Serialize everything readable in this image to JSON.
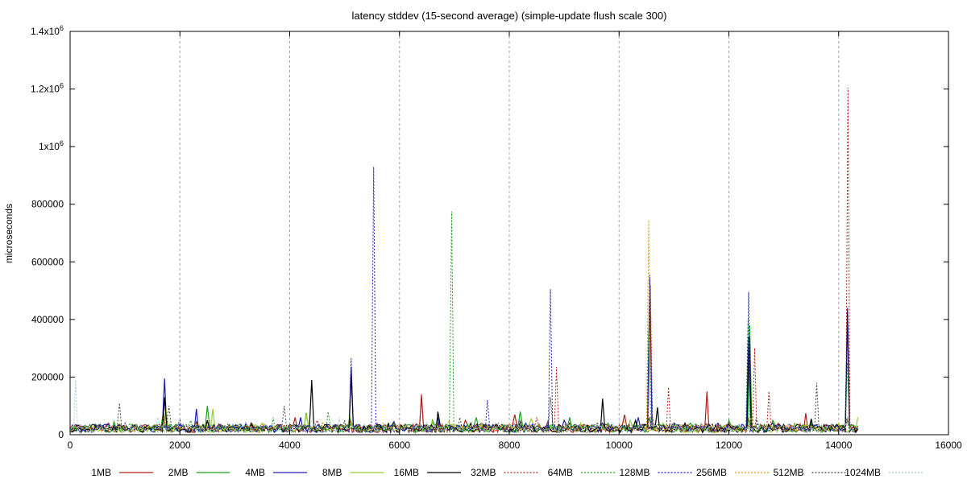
{
  "chart_data": {
    "type": "line",
    "title": "latency stddev (15-second average) (simple-update flush scale 300)",
    "xlabel": "",
    "ylabel": "microseconds",
    "xlim": [
      0,
      16000
    ],
    "ylim": [
      0,
      1400000
    ],
    "x_ticks": [
      {
        "value": 0,
        "label": "0"
      },
      {
        "value": 2000,
        "label": "2000"
      },
      {
        "value": 4000,
        "label": "4000"
      },
      {
        "value": 6000,
        "label": "6000"
      },
      {
        "value": 8000,
        "label": "8000"
      },
      {
        "value": 10000,
        "label": "10000"
      },
      {
        "value": 12000,
        "label": "12000"
      },
      {
        "value": 14000,
        "label": "14000"
      },
      {
        "value": 16000,
        "label": "16000"
      }
    ],
    "y_ticks": [
      {
        "value": 0,
        "label": "0"
      },
      {
        "value": 200000,
        "label": "200000"
      },
      {
        "value": 400000,
        "label": "400000"
      },
      {
        "value": 600000,
        "label": "600000"
      },
      {
        "value": 800000,
        "label": "800000"
      },
      {
        "value": 1000000,
        "label": "1x10",
        "exp": "6"
      },
      {
        "value": 1200000,
        "label": "1.2x10",
        "exp": "6"
      },
      {
        "value": 1400000,
        "label": "1.4x10",
        "exp": "6"
      }
    ],
    "grid": {
      "x": true,
      "y": false
    },
    "legend_placement": "bottom",
    "series": [
      {
        "name": "1MB",
        "color": "#b41e1e",
        "dashed": false,
        "x": [
          0,
          700,
          1700,
          2300,
          3300,
          4100,
          5100,
          5900,
          6400,
          6700,
          7200,
          8100,
          8700,
          9400,
          10100,
          10550,
          11000,
          11600,
          12000,
          12350,
          12900,
          13400,
          14150,
          14350
        ],
        "y": [
          20000,
          40000,
          60000,
          45000,
          35000,
          60000,
          50000,
          40000,
          140000,
          40000,
          50000,
          70000,
          45000,
          30000,
          70000,
          60000,
          40000,
          150000,
          40000,
          60000,
          40000,
          75000,
          50000,
          30000
        ]
      },
      {
        "name": "2MB",
        "color": "#1ea01e",
        "dashed": false,
        "x": [
          0,
          800,
          1700,
          2500,
          3300,
          4300,
          5100,
          5900,
          6600,
          7400,
          8200,
          9100,
          9800,
          10550,
          11300,
          12000,
          12380,
          12800,
          13500,
          14150,
          14350
        ],
        "y": [
          20000,
          45000,
          80000,
          100000,
          40000,
          75000,
          55000,
          45000,
          50000,
          60000,
          80000,
          60000,
          40000,
          60000,
          40000,
          50000,
          380000,
          50000,
          40000,
          55000,
          25000
        ]
      },
      {
        "name": "4MB",
        "color": "#1e1eb4",
        "dashed": false,
        "x": [
          0,
          700,
          1720,
          2300,
          3200,
          4200,
          5120,
          5900,
          6700,
          7500,
          8300,
          9000,
          9700,
          10350,
          10560,
          11000,
          11800,
          12360,
          12800,
          13600,
          14160,
          14350
        ],
        "y": [
          15000,
          35000,
          195000,
          90000,
          40000,
          60000,
          235000,
          45000,
          60000,
          40000,
          40000,
          50000,
          40000,
          60000,
          540000,
          40000,
          40000,
          340000,
          40000,
          35000,
          440000,
          20000
        ]
      },
      {
        "name": "8MB",
        "color": "#9acd32",
        "dashed": false,
        "x": [
          0,
          900,
          1750,
          2600,
          3500,
          4300,
          5100,
          5800,
          6600,
          7500,
          8400,
          9300,
          10200,
          10800,
          11700,
          12400,
          13200,
          14000,
          14350
        ],
        "y": [
          15000,
          40000,
          90000,
          90000,
          40000,
          70000,
          65000,
          40000,
          45000,
          40000,
          55000,
          40000,
          50000,
          40000,
          35000,
          55000,
          35000,
          40000,
          60000
        ]
      },
      {
        "name": "16MB",
        "color": "#000000",
        "dashed": false,
        "x": [
          0,
          800,
          1720,
          2500,
          3300,
          4400,
          5120,
          5800,
          6700,
          7300,
          8200,
          9100,
          9700,
          10300,
          10700,
          11200,
          12000,
          12370,
          13000,
          13500,
          14160,
          14350
        ],
        "y": [
          12000,
          30000,
          130000,
          50000,
          40000,
          190000,
          210000,
          40000,
          80000,
          40000,
          50000,
          40000,
          125000,
          50000,
          95000,
          40000,
          35000,
          340000,
          35000,
          55000,
          420000,
          20000
        ]
      },
      {
        "name": "32MB",
        "color": "#b41e1e",
        "dashed": true,
        "x": [
          0,
          1700,
          2300,
          3300,
          4500,
          5600,
          6400,
          7400,
          8500,
          8860,
          9600,
          10570,
          10900,
          11700,
          12470,
          12730,
          13300,
          14170,
          14350
        ],
        "y": [
          10000,
          60000,
          40000,
          40000,
          50000,
          40000,
          120000,
          40000,
          60000,
          235000,
          40000,
          520000,
          165000,
          40000,
          300000,
          150000,
          40000,
          1205000,
          30000
        ]
      },
      {
        "name": "64MB",
        "color": "#1ea01e",
        "dashed": true,
        "x": [
          0,
          1100,
          2200,
          3700,
          4700,
          5900,
          6950,
          7800,
          8800,
          9800,
          10540,
          11400,
          12350,
          13200,
          14160,
          14350
        ],
        "y": [
          10000,
          40000,
          50000,
          60000,
          80000,
          40000,
          775000,
          40000,
          40000,
          40000,
          360000,
          40000,
          400000,
          40000,
          250000,
          30000
        ]
      },
      {
        "name": "128MB",
        "color": "#1e1eb4",
        "dashed": true,
        "x": [
          0,
          1000,
          2000,
          3100,
          4200,
          5120,
          5530,
          6300,
          7600,
          8750,
          9700,
          10560,
          11500,
          12360,
          13100,
          14160,
          14350
        ],
        "y": [
          10000,
          40000,
          50000,
          40000,
          60000,
          265000,
          930000,
          40000,
          120000,
          505000,
          40000,
          555000,
          40000,
          495000,
          40000,
          410000,
          30000
        ]
      },
      {
        "name": "256MB",
        "color": "#d4a017",
        "dashed": true,
        "x": [
          0,
          1200,
          2300,
          3500,
          4600,
          5700,
          6900,
          8000,
          9100,
          10100,
          10540,
          11500,
          12400,
          13300,
          14160,
          14350
        ],
        "y": [
          10000,
          40000,
          40000,
          40000,
          45000,
          40000,
          50000,
          40000,
          40000,
          50000,
          745000,
          40000,
          60000,
          40000,
          60000,
          20000
        ]
      },
      {
        "name": "512MB",
        "color": "#444444",
        "dashed": true,
        "x": [
          0,
          900,
          1800,
          2700,
          3900,
          5000,
          6100,
          7100,
          8100,
          8750,
          9600,
          10600,
          11600,
          12500,
          13600,
          14160,
          14350
        ],
        "y": [
          10000,
          110000,
          100000,
          40000,
          100000,
          50000,
          40000,
          60000,
          40000,
          130000,
          40000,
          70000,
          40000,
          60000,
          180000,
          60000,
          20000
        ]
      },
      {
        "name": "1024MB",
        "color": "#a0c8d8",
        "dashed": true,
        "x": [
          0,
          100,
          1600,
          3200,
          4900,
          6500,
          8200,
          9900,
          11500,
          13100,
          14160,
          14350
        ],
        "y": [
          10000,
          190000,
          60000,
          40000,
          60000,
          40000,
          50000,
          40000,
          40000,
          40000,
          60000,
          20000
        ]
      }
    ]
  }
}
